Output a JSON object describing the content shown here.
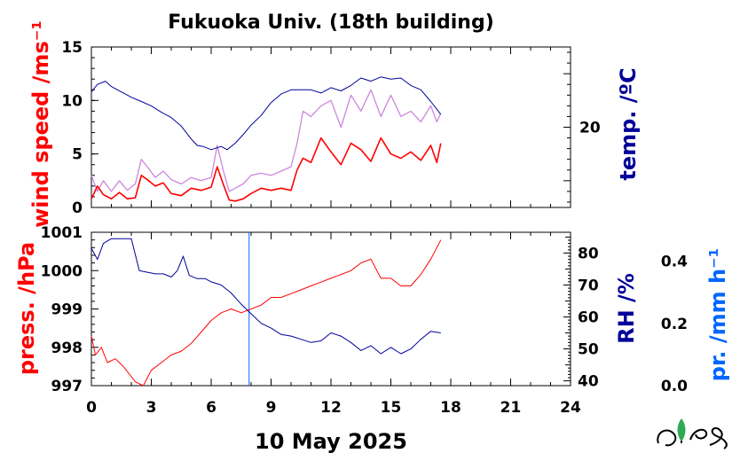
{
  "chart_data": [
    {
      "type": "line",
      "title": "Fukuoka Univ. (18th building)",
      "ylabel": "wind speed /ms⁻¹",
      "y2label": "temp. /ºC",
      "xlabel": "10 May 2025",
      "xlim": [
        0,
        24
      ],
      "xticks": [
        "0",
        "3",
        "6",
        "9",
        "12",
        "15",
        "18",
        "21",
        "24"
      ],
      "ylim": [
        0,
        15
      ],
      "yticks": [
        "0",
        "5",
        "10",
        "15"
      ],
      "y2lim": [
        12.5,
        27.5
      ],
      "y2ticks": [
        "20"
      ],
      "colors": {
        "wind_gust": "#cc88dd",
        "wind_mean": "#ff0000",
        "temperature": "#000099"
      },
      "series": [
        {
          "key": "wind_gust",
          "x": [
            0,
            0.3,
            0.6,
            1,
            1.4,
            1.8,
            2.2,
            2.5,
            2.8,
            3.2,
            3.6,
            4,
            4.5,
            5,
            5.5,
            6,
            6.3,
            6.6,
            6.9,
            7.2,
            7.6,
            8,
            8.5,
            9,
            9.5,
            10,
            10.3,
            10.6,
            11,
            11.5,
            12,
            12.5,
            13,
            13.5,
            14,
            14.5,
            15,
            15.5,
            16,
            16.5,
            17,
            17.3,
            17.5
          ],
          "values": [
            3,
            1.5,
            2.5,
            1.5,
            2.5,
            1.6,
            2.2,
            4.5,
            3.8,
            2.8,
            3.4,
            2.6,
            2.2,
            2.8,
            2.5,
            2.8,
            5.8,
            3.5,
            1.5,
            1.8,
            2.2,
            3,
            3.2,
            3,
            3.4,
            3.8,
            6,
            9,
            8.5,
            9.5,
            10,
            7.5,
            10.5,
            9,
            11,
            8.5,
            10.5,
            8.5,
            9,
            8,
            9.5,
            8,
            8.8
          ]
        },
        {
          "key": "wind_mean",
          "x": [
            0,
            0.3,
            0.6,
            1,
            1.4,
            1.8,
            2.2,
            2.5,
            2.8,
            3.2,
            3.6,
            4,
            4.5,
            5,
            5.5,
            6,
            6.3,
            6.6,
            6.9,
            7.2,
            7.6,
            8,
            8.5,
            9,
            9.5,
            10,
            10.3,
            10.6,
            11,
            11.5,
            12,
            12.5,
            13,
            13.5,
            14,
            14.5,
            15,
            15.5,
            16,
            16.5,
            17,
            17.3,
            17.5
          ],
          "values": [
            0.8,
            2,
            1.2,
            0.8,
            1.4,
            0.8,
            0.9,
            3,
            2.6,
            2,
            2.3,
            1.3,
            1.1,
            1.8,
            1.6,
            1.9,
            3.8,
            2.2,
            0.7,
            0.6,
            0.8,
            1.3,
            1.8,
            1.6,
            1.8,
            1.6,
            3.5,
            4.6,
            4.2,
            6.5,
            5.2,
            4,
            6,
            5.4,
            4.3,
            6.5,
            5,
            4.6,
            5.2,
            4.4,
            5.8,
            4.2,
            6
          ]
        },
        {
          "key": "temperature",
          "x": [
            0,
            0.3,
            0.7,
            1,
            1.5,
            2,
            2.5,
            3,
            3.5,
            4,
            4.5,
            5,
            5.3,
            5.6,
            6,
            6.5,
            6.8,
            7.2,
            7.6,
            8,
            8.5,
            9,
            9.5,
            10,
            10.5,
            11,
            11.5,
            12,
            12.5,
            13,
            13.5,
            14,
            14.5,
            15,
            15.5,
            16,
            16.5,
            17,
            17.5
          ],
          "values": [
            23.3,
            24,
            24.3,
            23.8,
            23.3,
            22.8,
            22.4,
            22,
            21.4,
            20.9,
            20.1,
            18.9,
            18.3,
            18.2,
            17.9,
            18.2,
            17.9,
            18.5,
            19.3,
            20.2,
            21.1,
            22.3,
            23.1,
            23.5,
            23.5,
            23.5,
            23.2,
            23.7,
            23.4,
            23.9,
            24.6,
            24.3,
            24.7,
            24.5,
            24.6,
            23.9,
            23.5,
            22.4,
            21.2
          ]
        }
      ]
    },
    {
      "type": "line",
      "ylabel": "press. /hPa",
      "y2label": "RH /%",
      "y3label": "pr. /mm h⁻¹",
      "xlim": [
        0,
        24
      ],
      "xticks": [
        "0",
        "3",
        "6",
        "9",
        "12",
        "15",
        "18",
        "21",
        "24"
      ],
      "ylim": [
        997,
        1001
      ],
      "yticks": [
        "997",
        "998",
        "999",
        "1000",
        "1001"
      ],
      "y2lim": [
        38.5,
        86.5
      ],
      "y2ticks": [
        "40",
        "50",
        "60",
        "70",
        "80"
      ],
      "y3ticks": [
        "0.0",
        "0.2",
        "0.4"
      ],
      "marker_hour": 7.9,
      "colors": {
        "pressure": "#ff0000",
        "humidity": "#000099",
        "marker": "#0066ff"
      },
      "series": [
        {
          "key": "pressure",
          "x": [
            0,
            0.2,
            0.5,
            0.8,
            1.2,
            1.6,
            1.9,
            2.2,
            2.6,
            3,
            3.5,
            4,
            4.5,
            5,
            5.5,
            6,
            6.5,
            7,
            7.5,
            8,
            8.5,
            9,
            9.5,
            10,
            10.5,
            11,
            11.5,
            12,
            12.5,
            13,
            13.5,
            14,
            14.5,
            15,
            15.5,
            16,
            16.5,
            17,
            17.5
          ],
          "values": [
            998.3,
            997.8,
            998.0,
            997.6,
            997.7,
            997.5,
            997.3,
            997.1,
            997.0,
            997.4,
            997.6,
            997.8,
            997.9,
            998.1,
            998.4,
            998.7,
            998.9,
            999.0,
            998.9,
            999.0,
            999.1,
            999.3,
            999.3,
            999.4,
            999.5,
            999.6,
            999.7,
            999.8,
            999.9,
            1000.0,
            1000.2,
            1000.3,
            999.8,
            999.8,
            999.6,
            999.6,
            999.9,
            1000.3,
            1000.8
          ]
        },
        {
          "key": "humidity",
          "x": [
            0,
            0.3,
            0.6,
            1,
            1.5,
            2,
            2.4,
            2.8,
            3.2,
            3.6,
            4,
            4.3,
            4.6,
            4.9,
            5.3,
            5.7,
            6,
            6.5,
            7,
            7.5,
            8,
            8.5,
            9,
            9.5,
            10,
            10.5,
            11,
            11.5,
            12,
            12.5,
            13,
            13.5,
            14,
            14.5,
            15,
            15.5,
            16,
            16.5,
            17,
            17.5
          ],
          "values": [
            81.5,
            78,
            83,
            84.5,
            84.5,
            84.5,
            74.5,
            74,
            73.5,
            73.5,
            72.5,
            74.5,
            79,
            73,
            72,
            72,
            71,
            70,
            67.5,
            64,
            61,
            58,
            56.5,
            54.5,
            54,
            53,
            52,
            52.5,
            55,
            54,
            52,
            49.5,
            51,
            48.5,
            50.5,
            48.5,
            50,
            53,
            55.5,
            55
          ]
        }
      ]
    }
  ]
}
